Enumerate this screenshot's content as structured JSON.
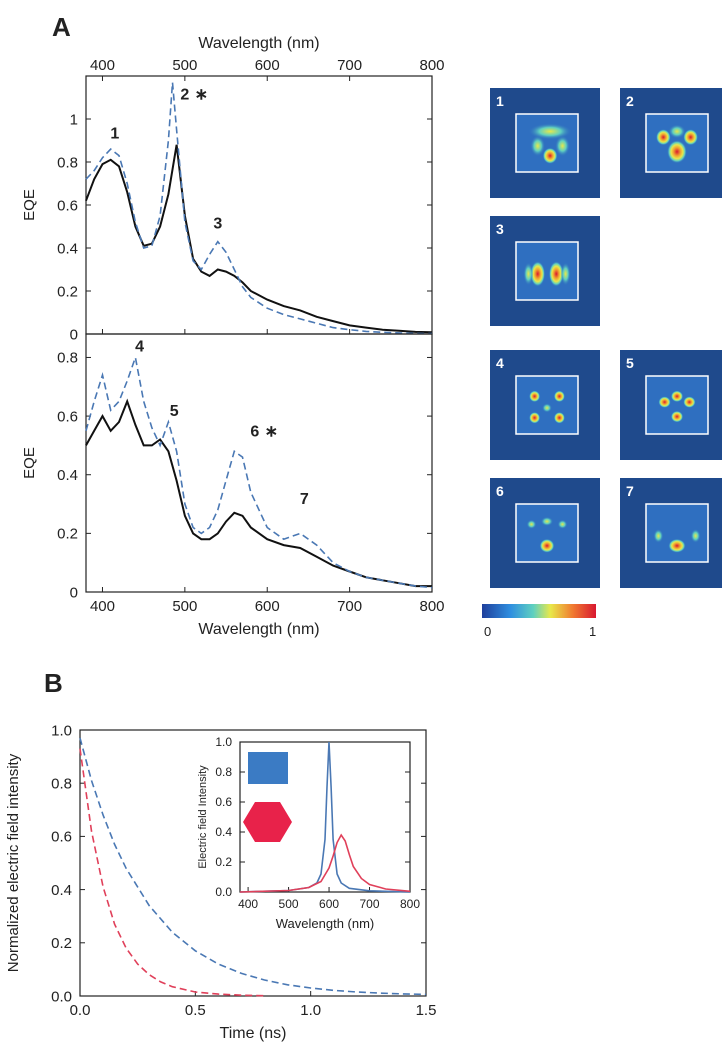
{
  "panel_labels": {
    "a": "A",
    "b": "B"
  },
  "colors": {
    "blue": "#4a78b4",
    "black": "#111111",
    "red": "#e0405a",
    "map_bg": "#1f4a8c"
  },
  "chart_data": [
    {
      "type": "line",
      "panel": "A-top",
      "xlabel": "Wavelength  (nm)",
      "ylabel": "EQE",
      "xlim": [
        380,
        800
      ],
      "ylim": [
        0,
        1.2
      ],
      "xticks": [
        400,
        500,
        600,
        700,
        800
      ],
      "yticks": [
        0,
        0.2,
        0.4,
        0.6,
        0.8,
        1
      ],
      "grid": false,
      "series": [
        {
          "style": "solid",
          "color": "#111111",
          "x": [
            380,
            390,
            400,
            410,
            420,
            430,
            440,
            450,
            460,
            470,
            480,
            490,
            500,
            510,
            520,
            530,
            540,
            550,
            560,
            570,
            580,
            600,
            620,
            640,
            660,
            680,
            700,
            720,
            740,
            760,
            780,
            800
          ],
          "y": [
            0.62,
            0.72,
            0.79,
            0.81,
            0.78,
            0.66,
            0.5,
            0.41,
            0.42,
            0.5,
            0.65,
            0.88,
            0.55,
            0.35,
            0.29,
            0.27,
            0.3,
            0.29,
            0.27,
            0.24,
            0.2,
            0.16,
            0.13,
            0.11,
            0.08,
            0.06,
            0.04,
            0.03,
            0.02,
            0.015,
            0.01,
            0.008
          ]
        },
        {
          "style": "dashed",
          "color": "#4a78b4",
          "x": [
            380,
            390,
            400,
            410,
            420,
            430,
            440,
            450,
            460,
            470,
            480,
            485,
            490,
            500,
            510,
            520,
            530,
            540,
            550,
            560,
            570,
            580,
            600,
            620,
            640,
            660,
            680,
            700,
            720,
            740,
            760,
            780,
            800
          ],
          "y": [
            0.72,
            0.76,
            0.82,
            0.86,
            0.83,
            0.7,
            0.52,
            0.4,
            0.41,
            0.55,
            0.9,
            1.17,
            0.95,
            0.52,
            0.34,
            0.3,
            0.37,
            0.43,
            0.38,
            0.3,
            0.22,
            0.17,
            0.12,
            0.09,
            0.07,
            0.05,
            0.03,
            0.02,
            0.012,
            0.008,
            0.005,
            0.003,
            0.002
          ]
        }
      ],
      "annotations": [
        {
          "text": "1",
          "x": 415,
          "y": 0.91
        },
        {
          "text": "2",
          "x": 500,
          "y": 1.09
        },
        {
          "text": "∗",
          "x": 520,
          "y": 1.09
        },
        {
          "text": "3",
          "x": 540,
          "y": 0.49
        }
      ]
    },
    {
      "type": "line",
      "panel": "A-bottom",
      "xlabel": "Wavelength  (nm)",
      "ylabel": "EQE",
      "xlim": [
        380,
        800
      ],
      "ylim": [
        0,
        0.88
      ],
      "xticks": [
        400,
        500,
        600,
        700,
        800
      ],
      "yticks": [
        0,
        0.2,
        0.4,
        0.6,
        0.8
      ],
      "grid": false,
      "series": [
        {
          "style": "solid",
          "color": "#111111",
          "x": [
            380,
            390,
            400,
            410,
            420,
            430,
            440,
            450,
            460,
            470,
            480,
            490,
            500,
            510,
            520,
            530,
            540,
            550,
            560,
            570,
            580,
            600,
            620,
            640,
            660,
            680,
            700,
            720,
            740,
            760,
            780,
            800
          ],
          "y": [
            0.5,
            0.55,
            0.6,
            0.55,
            0.58,
            0.65,
            0.57,
            0.5,
            0.5,
            0.52,
            0.48,
            0.38,
            0.26,
            0.2,
            0.18,
            0.18,
            0.2,
            0.24,
            0.27,
            0.26,
            0.22,
            0.18,
            0.16,
            0.15,
            0.12,
            0.09,
            0.07,
            0.05,
            0.04,
            0.03,
            0.02,
            0.02
          ]
        },
        {
          "style": "dashed",
          "color": "#4a78b4",
          "x": [
            380,
            390,
            400,
            410,
            420,
            430,
            440,
            450,
            460,
            470,
            480,
            490,
            500,
            510,
            520,
            530,
            540,
            550,
            560,
            570,
            580,
            600,
            620,
            640,
            660,
            680,
            700,
            720,
            740,
            760,
            780,
            800
          ],
          "y": [
            0.55,
            0.65,
            0.74,
            0.62,
            0.65,
            0.72,
            0.8,
            0.65,
            0.56,
            0.5,
            0.58,
            0.48,
            0.3,
            0.22,
            0.2,
            0.22,
            0.28,
            0.38,
            0.48,
            0.46,
            0.34,
            0.22,
            0.18,
            0.2,
            0.16,
            0.1,
            0.07,
            0.05,
            0.04,
            0.03,
            0.02,
            0.015
          ]
        }
      ],
      "annotations": [
        {
          "text": "4",
          "x": 445,
          "y": 0.82
        },
        {
          "text": "5",
          "x": 487,
          "y": 0.6
        },
        {
          "text": "6",
          "x": 585,
          "y": 0.53
        },
        {
          "text": "∗",
          "x": 605,
          "y": 0.53
        },
        {
          "text": "7",
          "x": 645,
          "y": 0.3
        }
      ]
    },
    {
      "type": "line",
      "panel": "B",
      "xlabel": "Time (ns)",
      "ylabel": "Normalized electric field intensity",
      "xlim": [
        0,
        1.5
      ],
      "ylim": [
        0,
        1.0
      ],
      "xticks": [
        0.0,
        0.5,
        1.0,
        1.5
      ],
      "yticks": [
        0.0,
        0.2,
        0.4,
        0.6,
        0.8,
        1.0
      ],
      "grid": false,
      "series": [
        {
          "style": "dashed",
          "color": "#4a78b4",
          "x": [
            0.0,
            0.05,
            0.1,
            0.15,
            0.2,
            0.3,
            0.4,
            0.5,
            0.6,
            0.7,
            0.8,
            0.9,
            1.0,
            1.1,
            1.2,
            1.3,
            1.4,
            1.5
          ],
          "y": [
            0.97,
            0.81,
            0.68,
            0.57,
            0.48,
            0.34,
            0.24,
            0.17,
            0.12,
            0.085,
            0.06,
            0.042,
            0.03,
            0.021,
            0.015,
            0.011,
            0.008,
            0.006
          ]
        },
        {
          "style": "dashed",
          "color": "#e0405a",
          "x": [
            0.0,
            0.05,
            0.1,
            0.15,
            0.2,
            0.25,
            0.3,
            0.35,
            0.4,
            0.5,
            0.6,
            0.7,
            0.8
          ],
          "y": [
            0.93,
            0.62,
            0.41,
            0.27,
            0.18,
            0.12,
            0.08,
            0.053,
            0.035,
            0.015,
            0.007,
            0.003,
            0.001
          ]
        }
      ]
    },
    {
      "type": "line",
      "panel": "B-inset",
      "xlabel": "Wavelength (nm)",
      "ylabel": "Electric field Intensity",
      "xlim": [
        380,
        800
      ],
      "ylim": [
        0,
        1.0
      ],
      "xticks": [
        400,
        500,
        600,
        700,
        800
      ],
      "yticks": [
        0.0,
        0.2,
        0.4,
        0.6,
        0.8,
        1.0
      ],
      "grid": false,
      "series": [
        {
          "style": "solid",
          "color": "#4a78b4",
          "x": [
            380,
            500,
            550,
            570,
            580,
            590,
            595,
            600,
            605,
            610,
            620,
            630,
            650,
            700,
            800
          ],
          "y": [
            0.0,
            0.01,
            0.03,
            0.06,
            0.12,
            0.35,
            0.7,
            1.0,
            0.7,
            0.35,
            0.12,
            0.06,
            0.025,
            0.008,
            0.0
          ]
        },
        {
          "style": "solid",
          "color": "#e0405a",
          "x": [
            380,
            500,
            550,
            580,
            600,
            610,
            620,
            630,
            640,
            650,
            660,
            680,
            700,
            740,
            800
          ],
          "y": [
            0.0,
            0.01,
            0.03,
            0.07,
            0.16,
            0.24,
            0.33,
            0.38,
            0.34,
            0.25,
            0.17,
            0.09,
            0.05,
            0.02,
            0.005
          ]
        }
      ]
    }
  ],
  "maps": {
    "labels": [
      "1",
      "2",
      "3",
      "4",
      "5",
      "6",
      "7"
    ],
    "colorbar_min": "0",
    "colorbar_max": "1"
  }
}
